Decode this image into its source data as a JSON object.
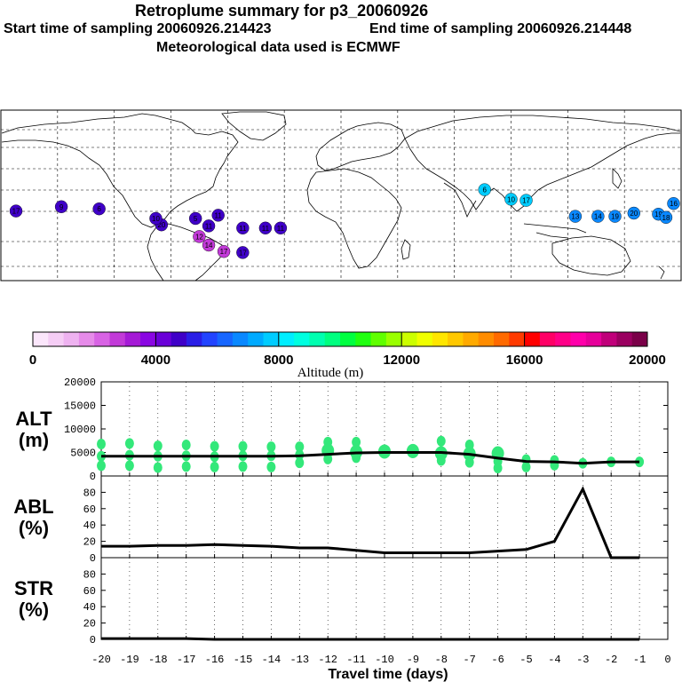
{
  "header": {
    "title": "Retroplume summary for p3_20060926",
    "start": "Start time of sampling 20060926.214423",
    "end": "End time of sampling 20060926.214448",
    "met": "Meteorological data used is ECMWF"
  },
  "colorbar": {
    "label": "Altitude (m)",
    "ticks": [
      "0",
      "4000",
      "8000",
      "12000",
      "16000",
      "20000"
    ],
    "range": [
      0,
      20000
    ],
    "colors": [
      "#fbe6fb",
      "#f5cdf5",
      "#eeb2f0",
      "#e68be9",
      "#d863e4",
      "#c23ad8",
      "#a51ad6",
      "#8a06e2",
      "#6a00d8",
      "#3f00c8",
      "#2a1ee6",
      "#2244ff",
      "#1766ff",
      "#0a88ff",
      "#00aaff",
      "#00ccff",
      "#00eeff",
      "#00ffe0",
      "#00ffb0",
      "#00ff80",
      "#00ff40",
      "#20ff10",
      "#60ff00",
      "#9aff00",
      "#ccff00",
      "#f0ff00",
      "#ffe600",
      "#ffc800",
      "#ffaa00",
      "#ff8c00",
      "#ff6a00",
      "#ff3a00",
      "#ff0000",
      "#ff0066",
      "#ff0088",
      "#ff00aa",
      "#e6009a",
      "#c0007a",
      "#9a0060",
      "#7a0048"
    ]
  },
  "chart_data": [
    {
      "type": "scatter",
      "title": "ALT (m)",
      "ylabel": "ALT\n(m)",
      "xlabel": "Travel time (days)",
      "ylim": [
        0,
        20000
      ],
      "yticks": [
        0,
        5000,
        10000,
        15000,
        20000
      ],
      "x_tick_labels": [
        "-20",
        "-19",
        "-18",
        "-17",
        "-16",
        "-15",
        "-14",
        "-13",
        "-12",
        "-11",
        "-10",
        "-9",
        "-8",
        "-7",
        "-6",
        "-5",
        "-4",
        "-3",
        "-2",
        "-1",
        "0"
      ],
      "mean_line": {
        "x": [
          -20,
          -19,
          -18,
          -17,
          -16,
          -15,
          -14,
          -13,
          -12,
          -11,
          -10,
          -9,
          -8,
          -7,
          -6,
          -5,
          -4,
          -3,
          -2,
          -1
        ],
        "y": [
          4200,
          4200,
          4200,
          4200,
          4200,
          4200,
          4200,
          4300,
          4600,
          4900,
          5000,
          5000,
          5000,
          4600,
          3800,
          3100,
          3000,
          2700,
          3000,
          3000
        ]
      },
      "points": [
        {
          "x": -20,
          "y": 6800
        },
        {
          "x": -20,
          "y": 4200
        },
        {
          "x": -20,
          "y": 2200
        },
        {
          "x": -19,
          "y": 6900
        },
        {
          "x": -19,
          "y": 4400
        },
        {
          "x": -19,
          "y": 2200
        },
        {
          "x": -18,
          "y": 6400
        },
        {
          "x": -18,
          "y": 4200
        },
        {
          "x": -18,
          "y": 1800
        },
        {
          "x": -17,
          "y": 6600
        },
        {
          "x": -17,
          "y": 4300
        },
        {
          "x": -17,
          "y": 2000
        },
        {
          "x": -16,
          "y": 6300
        },
        {
          "x": -16,
          "y": 4100
        },
        {
          "x": -16,
          "y": 1900
        },
        {
          "x": -15,
          "y": 6300
        },
        {
          "x": -15,
          "y": 4300
        },
        {
          "x": -15,
          "y": 2000
        },
        {
          "x": -14,
          "y": 6200
        },
        {
          "x": -14,
          "y": 4300
        },
        {
          "x": -14,
          "y": 1900
        },
        {
          "x": -13,
          "y": 6200
        },
        {
          "x": -13,
          "y": 4500
        },
        {
          "x": -13,
          "y": 2800
        },
        {
          "x": -12,
          "y": 7200
        },
        {
          "x": -12,
          "y": 5400
        },
        {
          "x": -12,
          "y": 3600
        },
        {
          "x": -11,
          "y": 7200
        },
        {
          "x": -11,
          "y": 5100
        },
        {
          "x": -11,
          "y": 3900
        },
        {
          "x": -10,
          "y": 5200
        },
        {
          "x": -9,
          "y": 5300
        },
        {
          "x": -8,
          "y": 7400
        },
        {
          "x": -8,
          "y": 4800
        },
        {
          "x": -8,
          "y": 3300
        },
        {
          "x": -7,
          "y": 6600
        },
        {
          "x": -7,
          "y": 4700
        },
        {
          "x": -7,
          "y": 2900
        },
        {
          "x": -6,
          "y": 4800
        },
        {
          "x": -6,
          "y": 3100
        },
        {
          "x": -6,
          "y": 1700
        },
        {
          "x": -5,
          "y": 3500
        },
        {
          "x": -5,
          "y": 1900
        },
        {
          "x": -4,
          "y": 3300
        },
        {
          "x": -4,
          "y": 2300
        },
        {
          "x": -3,
          "y": 2700
        },
        {
          "x": -2,
          "y": 3000
        },
        {
          "x": -1,
          "y": 3000
        }
      ]
    },
    {
      "type": "line",
      "title": "ABL (%)",
      "ylabel": "ABL\n(%)",
      "ylim": [
        0,
        100
      ],
      "yticks": [
        0,
        20,
        40,
        60,
        80
      ],
      "x": [
        -20,
        -19,
        -18,
        -17,
        -16,
        -15,
        -14,
        -13,
        -12,
        -11,
        -10,
        -9,
        -8,
        -7,
        -6,
        -5,
        -4,
        -3,
        -2,
        -1
      ],
      "values": [
        14,
        14,
        15,
        15,
        16,
        15,
        14,
        12,
        12,
        9,
        6,
        6,
        6,
        6,
        8,
        10,
        20,
        84,
        0,
        0
      ]
    },
    {
      "type": "line",
      "title": "STR (%)",
      "ylabel": "STR\n(%)",
      "ylim": [
        0,
        100
      ],
      "yticks": [
        0,
        20,
        40,
        60,
        80
      ],
      "x": [
        -20,
        -19,
        -18,
        -17,
        -16,
        -15,
        -14,
        -13,
        -12,
        -11,
        -10,
        -9,
        -8,
        -7,
        -6,
        -5,
        -4,
        -3,
        -2,
        -1
      ],
      "values": [
        1,
        1,
        1,
        1,
        0,
        0,
        0,
        0,
        0,
        0,
        0,
        0,
        0,
        0,
        0,
        0,
        0,
        0,
        0,
        0
      ]
    }
  ],
  "map": {
    "labels": [
      {
        "lon": -172,
        "lat": 2,
        "t": "17"
      },
      {
        "lon": -148,
        "lat": 6,
        "t": "9"
      },
      {
        "lon": -128,
        "lat": 4,
        "t": "6"
      },
      {
        "lon": -65,
        "lat": -2,
        "t": "11"
      },
      {
        "lon": -70,
        "lat": -12,
        "t": "11"
      },
      {
        "lon": -52,
        "lat": -14,
        "t": "11"
      },
      {
        "lon": -40,
        "lat": -14,
        "t": "11"
      },
      {
        "lon": -32,
        "lat": -14,
        "t": "11"
      },
      {
        "lon": -75,
        "lat": -22,
        "t": "12"
      },
      {
        "lon": -70,
        "lat": -30,
        "t": "14"
      },
      {
        "lon": -62,
        "lat": -36,
        "t": "17"
      },
      {
        "lon": -52,
        "lat": -37,
        "t": "17"
      },
      {
        "lon": -95,
        "lat": -11,
        "t": "20"
      },
      {
        "lon": -98,
        "lat": -5,
        "t": "10"
      },
      {
        "lon": -77,
        "lat": -5,
        "t": "5"
      },
      {
        "lon": 76,
        "lat": 22,
        "t": "6"
      },
      {
        "lon": 98,
        "lat": 12,
        "t": "17"
      },
      {
        "lon": 90,
        "lat": 13,
        "t": "10"
      },
      {
        "lon": 124,
        "lat": -3,
        "t": "13"
      },
      {
        "lon": 136,
        "lat": -3,
        "t": "14"
      },
      {
        "lon": 145,
        "lat": -3,
        "t": "19"
      },
      {
        "lon": 155,
        "lat": 0,
        "t": "20"
      },
      {
        "lon": 168,
        "lat": -1,
        "t": "19"
      },
      {
        "lon": 172,
        "lat": -4,
        "t": "18"
      },
      {
        "lon": 176,
        "lat": 9,
        "t": "16"
      }
    ]
  }
}
